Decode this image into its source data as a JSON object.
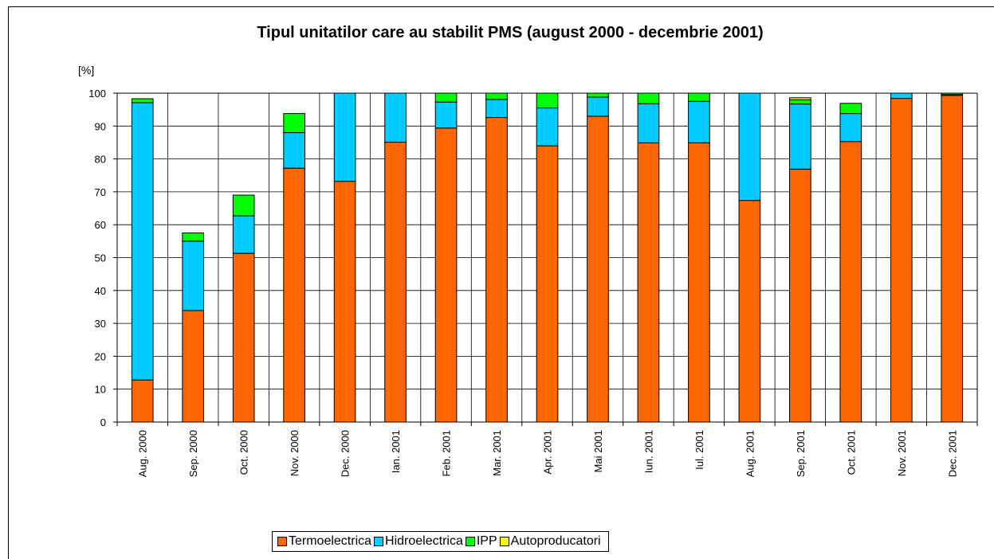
{
  "chart_data": {
    "type": "stacked_bar",
    "title": "Tipul unitatilor care au stabilit PMS (august 2000 - decembrie 2001)",
    "y_label": "[%]",
    "categories": [
      "Aug. 2000",
      "Sep. 2000",
      "Oct. 2000",
      "Nov. 2000",
      "Dec. 2000",
      "Ian. 2001",
      "Feb. 2001",
      "Mar. 2001",
      "Apr. 2001",
      "Mai 2001",
      "Iun. 2001",
      "Iul. 2001",
      "Aug. 2001",
      "Sep. 2001",
      "Oct. 2001",
      "Nov. 2001",
      "Dec. 2001"
    ],
    "series": [
      {
        "name": "Termoelectrica",
        "color": "#ff6600",
        "values": [
          12.8,
          33.9,
          51.3,
          77.2,
          73.2,
          85.1,
          89.4,
          92.6,
          84,
          93,
          84.9,
          84.9,
          67.4,
          76.9,
          85.3,
          98.4,
          99.3
        ]
      },
      {
        "name": "Hidroelectrica",
        "color": "#00ccff",
        "values": [
          84.3,
          21.1,
          11.4,
          10.8,
          26.8,
          14.9,
          7.9,
          5.5,
          11.5,
          5.8,
          11.9,
          12.6,
          32.6,
          19.8,
          8.5,
          1.6,
          0.3
        ]
      },
      {
        "name": "IPP",
        "color": "#00ff00",
        "values": [
          1.2,
          2.5,
          6.3,
          5.8,
          0,
          0,
          2.7,
          1.9,
          4.5,
          1.2,
          3.2,
          2.5,
          0,
          1.3,
          3.1,
          0,
          0.4
        ]
      },
      {
        "name": "Autoproducatori",
        "color": "#ffff00",
        "values": [
          0,
          0,
          0,
          0,
          0,
          0,
          0,
          0,
          0,
          0,
          0,
          0,
          0,
          0.6,
          0,
          0,
          0
        ]
      }
    ],
    "ylim": [
      0,
      100
    ],
    "yticks": [
      0,
      10,
      20,
      30,
      40,
      50,
      60,
      70,
      80,
      90,
      100
    ],
    "grid": true,
    "legend": "bottom"
  }
}
